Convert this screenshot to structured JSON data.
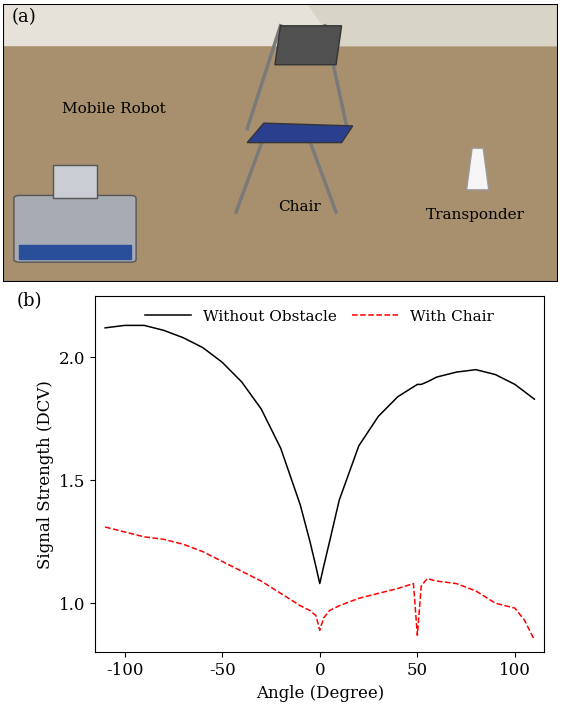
{
  "photo": {
    "label": "(a)",
    "annotations": [
      "Mobile Robot",
      "Chair",
      "Transponder"
    ]
  },
  "chart_data": {
    "type": "line",
    "label": "(b)",
    "x_label": "Angle (Degree)",
    "y_label": "Signal Strength (DCV)",
    "x": [
      -110,
      -100,
      -90,
      -80,
      -70,
      -60,
      -50,
      -40,
      -30,
      -20,
      -10,
      -5,
      -2,
      0,
      2,
      5,
      10,
      20,
      30,
      40,
      48,
      50,
      52,
      55,
      60,
      70,
      80,
      90,
      100,
      105,
      110
    ],
    "series": [
      {
        "name": "Without Obstacle",
        "color": "#000000",
        "line_style": "solid",
        "values": [
          2.12,
          2.13,
          2.13,
          2.11,
          2.08,
          2.04,
          1.98,
          1.9,
          1.79,
          1.63,
          1.4,
          1.25,
          1.15,
          1.08,
          1.15,
          1.25,
          1.42,
          1.64,
          1.76,
          1.84,
          1.88,
          1.89,
          1.89,
          1.9,
          1.92,
          1.94,
          1.95,
          1.93,
          1.89,
          1.86,
          1.83
        ]
      },
      {
        "name": "With Chair",
        "color": "#ff0000",
        "line_style": "dashed",
        "values": [
          1.31,
          1.29,
          1.27,
          1.26,
          1.24,
          1.21,
          1.17,
          1.13,
          1.09,
          1.04,
          0.99,
          0.97,
          0.95,
          0.89,
          0.94,
          0.97,
          0.99,
          1.02,
          1.04,
          1.06,
          1.08,
          0.87,
          1.07,
          1.1,
          1.09,
          1.08,
          1.05,
          1.0,
          0.98,
          0.93,
          0.85
        ]
      }
    ],
    "xlim": [
      -115,
      115
    ],
    "xticks": [
      -100,
      -50,
      0,
      50,
      100
    ],
    "ylim": [
      0.8,
      2.25
    ],
    "yticks": [
      {
        "value": 1.0,
        "label": "1.0"
      },
      {
        "value": 1.5,
        "label": "1.5"
      },
      {
        "value": 2.0,
        "label": "2.0"
      }
    ],
    "legend": "upper center",
    "grid": false
  }
}
